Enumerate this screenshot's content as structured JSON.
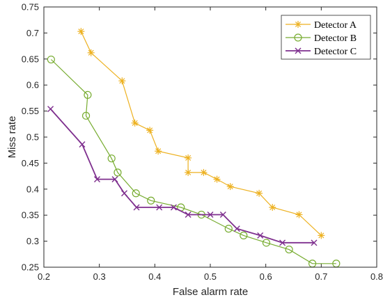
{
  "chart_data": {
    "type": "line",
    "title": "",
    "xlabel": "False alarm rate",
    "ylabel": "Miss rate",
    "xlim": [
      0.2,
      0.8
    ],
    "ylim": [
      0.25,
      0.75
    ],
    "xticks": [
      0.2,
      0.3,
      0.4,
      0.5,
      0.6,
      0.7,
      0.8
    ],
    "yticks": [
      0.25,
      0.3,
      0.35,
      0.4,
      0.45,
      0.5,
      0.55,
      0.6,
      0.65,
      0.7,
      0.75
    ],
    "grid": false,
    "legend_position": "top-right",
    "series": [
      {
        "name": "Detector A",
        "color": "#EDB120",
        "marker": "asterisk",
        "x": [
          0.267,
          0.285,
          0.341,
          0.364,
          0.391,
          0.406,
          0.46,
          0.46,
          0.488,
          0.512,
          0.536,
          0.588,
          0.612,
          0.66,
          0.7
        ],
        "y": [
          0.703,
          0.662,
          0.608,
          0.527,
          0.513,
          0.473,
          0.46,
          0.432,
          0.432,
          0.419,
          0.405,
          0.392,
          0.365,
          0.351,
          0.311
        ]
      },
      {
        "name": "Detector B",
        "color": "#77AC30",
        "marker": "circle",
        "x": [
          0.213,
          0.279,
          0.276,
          0.322,
          0.333,
          0.366,
          0.393,
          0.447,
          0.484,
          0.533,
          0.56,
          0.601,
          0.642,
          0.684,
          0.727
        ],
        "y": [
          0.649,
          0.581,
          0.541,
          0.459,
          0.432,
          0.392,
          0.378,
          0.365,
          0.351,
          0.324,
          0.311,
          0.297,
          0.284,
          0.257,
          0.257
        ]
      },
      {
        "name": "Detector C",
        "color": "#7E2F8E",
        "marker": "x",
        "x": [
          0.212,
          0.269,
          0.296,
          0.328,
          0.345,
          0.367,
          0.408,
          0.434,
          0.46,
          0.5,
          0.523,
          0.548,
          0.59,
          0.63,
          0.687
        ],
        "y": [
          0.554,
          0.486,
          0.419,
          0.419,
          0.392,
          0.365,
          0.365,
          0.365,
          0.351,
          0.351,
          0.351,
          0.324,
          0.311,
          0.297,
          0.297
        ]
      }
    ]
  }
}
